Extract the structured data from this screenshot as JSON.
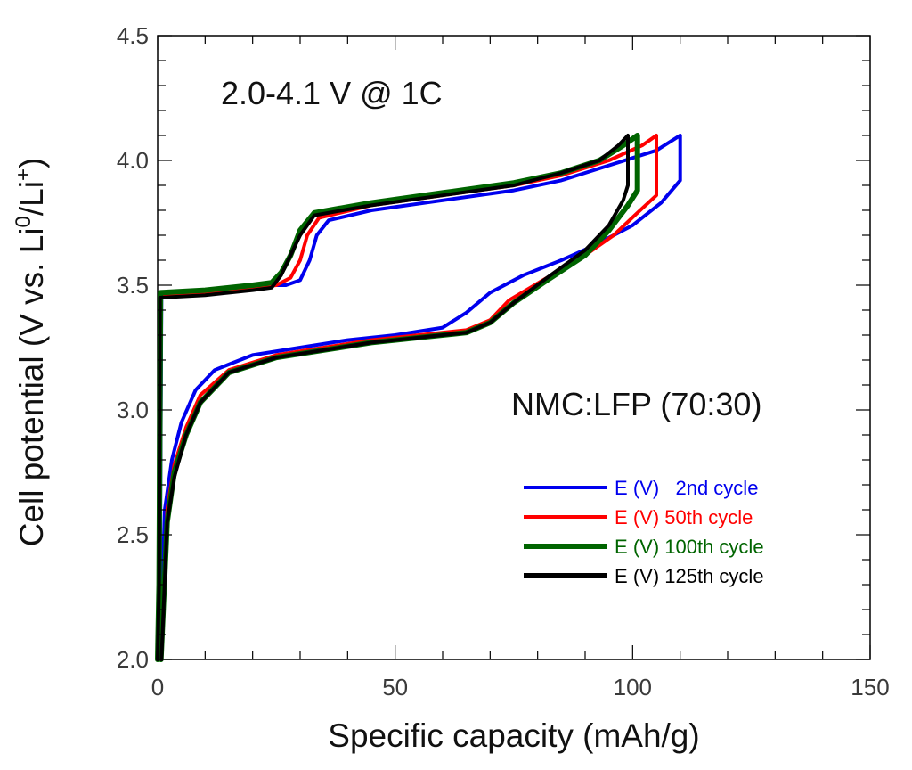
{
  "chart_data": {
    "type": "line",
    "xlabel": "Specific capacity (mAh/g)",
    "ylabel_main": "Cell potential (V vs. Li",
    "ylabel_sup1": "0",
    "ylabel_mid": "/Li",
    "ylabel_sup2": "+",
    "ylabel_end": ")",
    "xlim": [
      0,
      150
    ],
    "ylim": [
      2.0,
      4.5
    ],
    "x_ticks": [
      0,
      50,
      100,
      150
    ],
    "x_tick_labels": [
      "0",
      "50",
      "100",
      "150"
    ],
    "y_ticks": [
      2.0,
      2.5,
      3.0,
      3.5,
      4.0,
      4.5
    ],
    "y_tick_labels": [
      "2.0",
      "2.5",
      "3.0",
      "3.5",
      "4.0",
      "4.5"
    ],
    "annotations": [
      {
        "id": "voltage-window",
        "text": "2.0-4.1 V @ 1C"
      },
      {
        "id": "material",
        "text": "NMC:LFP (70:30)"
      }
    ],
    "legend": [
      {
        "prefix": "E",
        "paren": "(V)",
        "label": "  2nd cycle",
        "color": "#0000ee"
      },
      {
        "prefix": "E",
        "paren": "(V)",
        "label": "50th cycle",
        "color": "#ff0000"
      },
      {
        "prefix": "E",
        "paren": "(V)",
        "label": "100th cycle",
        "color": "#006400"
      },
      {
        "prefix": "E",
        "paren": "(V)",
        "label": "125th cycle",
        "color": "#000000"
      }
    ],
    "series": [
      {
        "name": "2nd cycle",
        "color": "#0000ee",
        "width": 4,
        "points": [
          [
            0,
            2.0
          ],
          [
            0.5,
            2.3
          ],
          [
            0.8,
            3.46
          ],
          [
            10,
            3.48
          ],
          [
            20,
            3.5
          ],
          [
            27,
            3.5
          ],
          [
            30,
            3.52
          ],
          [
            32,
            3.6
          ],
          [
            33.5,
            3.7
          ],
          [
            36,
            3.76
          ],
          [
            45,
            3.8
          ],
          [
            60,
            3.84
          ],
          [
            75,
            3.88
          ],
          [
            85,
            3.92
          ],
          [
            95,
            3.98
          ],
          [
            105,
            4.04
          ],
          [
            110,
            4.1
          ],
          [
            110,
            3.92
          ],
          [
            106,
            3.83
          ],
          [
            100,
            3.74
          ],
          [
            92,
            3.66
          ],
          [
            85,
            3.6
          ],
          [
            77,
            3.54
          ],
          [
            70,
            3.47
          ],
          [
            65,
            3.39
          ],
          [
            60,
            3.33
          ],
          [
            50,
            3.3
          ],
          [
            40,
            3.28
          ],
          [
            30,
            3.25
          ],
          [
            20,
            3.22
          ],
          [
            12,
            3.16
          ],
          [
            8,
            3.08
          ],
          [
            5,
            2.95
          ],
          [
            3,
            2.8
          ],
          [
            1.5,
            2.6
          ],
          [
            0.5,
            2.0
          ]
        ]
      },
      {
        "name": "50th cycle",
        "color": "#ff0000",
        "width": 4,
        "points": [
          [
            0,
            2.0
          ],
          [
            0.4,
            2.3
          ],
          [
            0.7,
            3.46
          ],
          [
            10,
            3.47
          ],
          [
            20,
            3.49
          ],
          [
            25,
            3.5
          ],
          [
            28,
            3.53
          ],
          [
            30,
            3.6
          ],
          [
            31.5,
            3.7
          ],
          [
            34,
            3.77
          ],
          [
            45,
            3.82
          ],
          [
            60,
            3.86
          ],
          [
            75,
            3.9
          ],
          [
            85,
            3.94
          ],
          [
            95,
            4.0
          ],
          [
            102,
            4.06
          ],
          [
            105,
            4.1
          ],
          [
            105,
            3.86
          ],
          [
            101,
            3.79
          ],
          [
            96,
            3.7
          ],
          [
            90,
            3.62
          ],
          [
            82,
            3.53
          ],
          [
            74,
            3.44
          ],
          [
            70,
            3.36
          ],
          [
            65,
            3.32
          ],
          [
            55,
            3.3
          ],
          [
            45,
            3.28
          ],
          [
            35,
            3.25
          ],
          [
            25,
            3.22
          ],
          [
            15,
            3.16
          ],
          [
            9,
            3.06
          ],
          [
            6,
            2.93
          ],
          [
            3.5,
            2.78
          ],
          [
            2,
            2.6
          ],
          [
            0.6,
            2.0
          ]
        ]
      },
      {
        "name": "100th cycle",
        "color": "#006400",
        "width": 6,
        "points": [
          [
            0,
            2.0
          ],
          [
            0.3,
            2.3
          ],
          [
            0.6,
            3.47
          ],
          [
            10,
            3.48
          ],
          [
            20,
            3.5
          ],
          [
            24,
            3.51
          ],
          [
            26,
            3.55
          ],
          [
            28,
            3.62
          ],
          [
            30,
            3.72
          ],
          [
            33,
            3.79
          ],
          [
            45,
            3.83
          ],
          [
            60,
            3.87
          ],
          [
            75,
            3.91
          ],
          [
            85,
            3.95
          ],
          [
            93,
            4.0
          ],
          [
            98,
            4.06
          ],
          [
            101,
            4.1
          ],
          [
            101,
            3.88
          ],
          [
            99,
            3.82
          ],
          [
            95,
            3.72
          ],
          [
            90,
            3.62
          ],
          [
            82,
            3.52
          ],
          [
            75,
            3.43
          ],
          [
            70,
            3.35
          ],
          [
            65,
            3.31
          ],
          [
            55,
            3.29
          ],
          [
            45,
            3.27
          ],
          [
            35,
            3.24
          ],
          [
            25,
            3.21
          ],
          [
            15,
            3.15
          ],
          [
            9,
            3.03
          ],
          [
            6,
            2.9
          ],
          [
            3.5,
            2.75
          ],
          [
            2,
            2.55
          ],
          [
            0.7,
            2.0
          ]
        ]
      },
      {
        "name": "125th cycle",
        "color": "#000000",
        "width": 4,
        "points": [
          [
            0,
            2.0
          ],
          [
            0.3,
            2.3
          ],
          [
            0.5,
            3.45
          ],
          [
            10,
            3.46
          ],
          [
            20,
            3.48
          ],
          [
            24,
            3.49
          ],
          [
            26,
            3.54
          ],
          [
            28,
            3.62
          ],
          [
            30,
            3.7
          ],
          [
            33,
            3.78
          ],
          [
            45,
            3.82
          ],
          [
            60,
            3.86
          ],
          [
            75,
            3.9
          ],
          [
            85,
            3.95
          ],
          [
            93,
            4.0
          ],
          [
            97,
            4.06
          ],
          [
            99,
            4.1
          ],
          [
            99,
            3.9
          ],
          [
            98,
            3.84
          ],
          [
            95,
            3.74
          ],
          [
            90,
            3.64
          ],
          [
            82,
            3.53
          ],
          [
            75,
            3.43
          ],
          [
            70,
            3.35
          ],
          [
            65,
            3.31
          ],
          [
            55,
            3.29
          ],
          [
            45,
            3.27
          ],
          [
            35,
            3.24
          ],
          [
            25,
            3.21
          ],
          [
            15,
            3.15
          ],
          [
            9,
            3.03
          ],
          [
            6,
            2.9
          ],
          [
            3.5,
            2.73
          ],
          [
            2,
            2.55
          ],
          [
            0.8,
            2.0
          ]
        ]
      }
    ]
  }
}
